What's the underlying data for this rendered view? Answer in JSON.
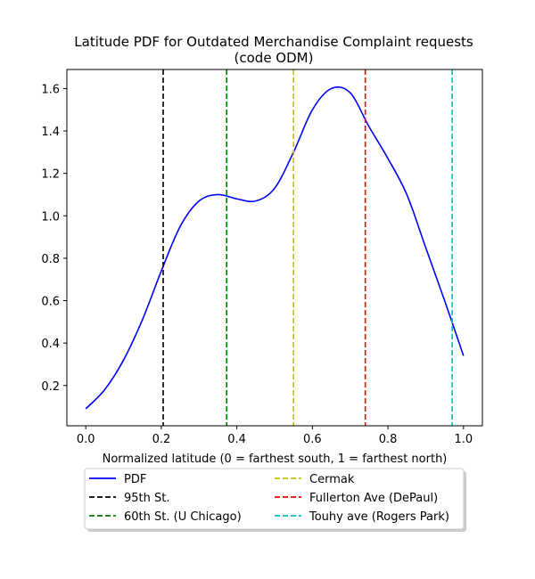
{
  "chart_data": {
    "type": "line",
    "title": "Latitude PDF for Outdated Merchandise Complaint  requests",
    "subtitle": "(code ODM)",
    "xlabel": "Normalized latitude (0 = farthest south, 1 = farthest north)",
    "ylabel": "",
    "xlim": [
      -0.05,
      1.05
    ],
    "ylim": [
      0.01,
      1.69
    ],
    "xticks": [
      "0.0",
      "0.2",
      "0.4",
      "0.6",
      "0.8",
      "1.0"
    ],
    "yticks": [
      "0.2",
      "0.4",
      "0.6",
      "0.8",
      "1.0",
      "1.2",
      "1.4",
      "1.6"
    ],
    "grid": false,
    "legend_position": "below",
    "series": [
      {
        "name": "PDF",
        "color": "#0000ff",
        "x": [
          0.0,
          0.05,
          0.1,
          0.15,
          0.2,
          0.25,
          0.3,
          0.35,
          0.4,
          0.45,
          0.5,
          0.55,
          0.6,
          0.65,
          0.7,
          0.75,
          0.8,
          0.85,
          0.9,
          0.95,
          1.0
        ],
        "y": [
          0.09,
          0.18,
          0.32,
          0.51,
          0.74,
          0.95,
          1.07,
          1.1,
          1.08,
          1.07,
          1.13,
          1.3,
          1.5,
          1.6,
          1.58,
          1.42,
          1.27,
          1.1,
          0.85,
          0.6,
          0.34
        ]
      }
    ],
    "reference_lines": [
      {
        "name": "95th St.",
        "x": 0.205,
        "color": "#000000"
      },
      {
        "name": "60th St. (U Chicago)",
        "x": 0.373,
        "color": "#008000"
      },
      {
        "name": "Cermak",
        "x": 0.55,
        "color": "#bfbf00"
      },
      {
        "name": "Fullerton Ave (DePaul)",
        "x": 0.74,
        "color": "#ff0000"
      },
      {
        "name": "Touhy ave (Rogers Park)",
        "x": 0.97,
        "color": "#00bfbf"
      }
    ]
  }
}
